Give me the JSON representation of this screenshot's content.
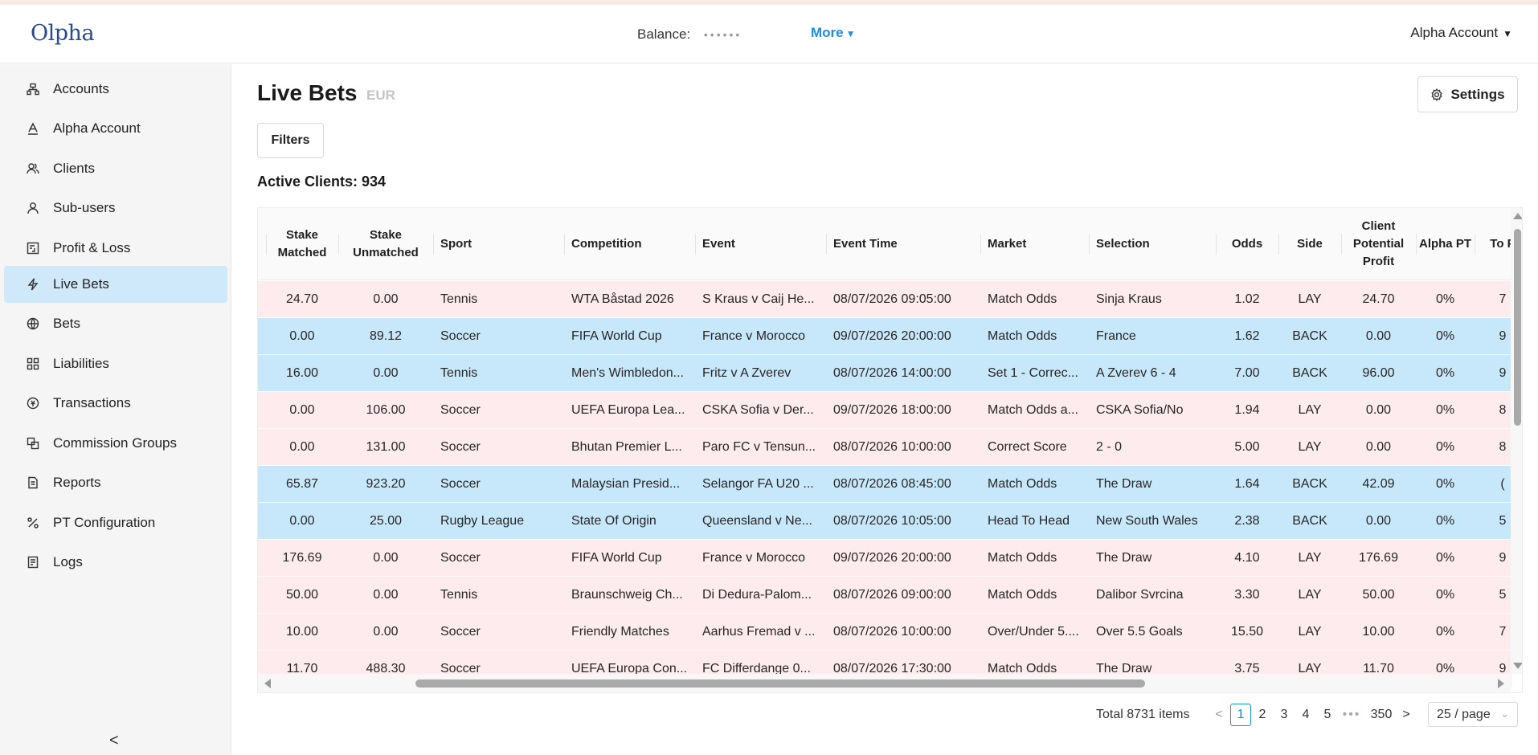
{
  "header": {
    "logo": "Olpha",
    "balance_label": "Balance:",
    "balance_value": "••••••",
    "more_label": "More",
    "account_label": "Alpha Account"
  },
  "sidebar": {
    "items": [
      {
        "label": "Accounts",
        "icon": "accounts-icon"
      },
      {
        "label": "Alpha Account",
        "icon": "alpha-icon"
      },
      {
        "label": "Clients",
        "icon": "clients-icon"
      },
      {
        "label": "Sub-users",
        "icon": "user-icon"
      },
      {
        "label": "Profit & Loss",
        "icon": "ledger-icon"
      },
      {
        "label": "Live Bets",
        "icon": "lightning-icon",
        "active": true
      },
      {
        "label": "Bets",
        "icon": "ball-icon"
      },
      {
        "label": "Liabilities",
        "icon": "grid-icon"
      },
      {
        "label": "Transactions",
        "icon": "currency-icon"
      },
      {
        "label": "Commission Groups",
        "icon": "groups-icon"
      },
      {
        "label": "Reports",
        "icon": "document-icon"
      },
      {
        "label": "PT Configuration",
        "icon": "percent-icon"
      },
      {
        "label": "Logs",
        "icon": "log-icon"
      }
    ],
    "collapse_label": "<"
  },
  "page": {
    "title": "Live Bets",
    "currency": "EUR",
    "settings_label": "Settings",
    "filters_label": "Filters",
    "active_clients": "Active Clients: 934"
  },
  "table": {
    "columns": [
      "Stake Matched",
      "Stake Unmatched",
      "Sport",
      "Competition",
      "Event",
      "Event Time",
      "Market",
      "Selection",
      "Odds",
      "Side",
      "Client Potential Profit",
      "Alpha PT",
      "To P"
    ],
    "rows": [
      {
        "side_type": "lay",
        "cells": [
          "24.70",
          "0.00",
          "Tennis",
          "WTA Båstad 2026",
          "S Kraus v Caij He...",
          "08/07/2026 09:05:00",
          "Match Odds",
          "Sinja Kraus",
          "1.02",
          "LAY",
          "24.70",
          "0%",
          "7"
        ]
      },
      {
        "side_type": "back",
        "cells": [
          "0.00",
          "89.12",
          "Soccer",
          "FIFA World Cup",
          "France v Morocco",
          "09/07/2026 20:00:00",
          "Match Odds",
          "France",
          "1.62",
          "BACK",
          "0.00",
          "0%",
          "9"
        ]
      },
      {
        "side_type": "back",
        "cells": [
          "16.00",
          "0.00",
          "Tennis",
          "Men's Wimbledon...",
          "Fritz v A Zverev",
          "08/07/2026 14:00:00",
          "Set 1 - Correc...",
          "A Zverev 6 - 4",
          "7.00",
          "BACK",
          "96.00",
          "0%",
          "9"
        ]
      },
      {
        "side_type": "lay",
        "cells": [
          "0.00",
          "106.00",
          "Soccer",
          "UEFA Europa Lea...",
          "CSKA Sofia v Der...",
          "09/07/2026 18:00:00",
          "Match Odds a...",
          "CSKA Sofia/No",
          "1.94",
          "LAY",
          "0.00",
          "0%",
          "8"
        ]
      },
      {
        "side_type": "lay",
        "cells": [
          "0.00",
          "131.00",
          "Soccer",
          "Bhutan Premier L...",
          "Paro FC v Tensun...",
          "08/07/2026 10:00:00",
          "Correct Score",
          "2 - 0",
          "5.00",
          "LAY",
          "0.00",
          "0%",
          "8"
        ]
      },
      {
        "side_type": "back",
        "cells": [
          "65.87",
          "923.20",
          "Soccer",
          "Malaysian Presid...",
          "Selangor FA U20 ...",
          "08/07/2026 08:45:00",
          "Match Odds",
          "The Draw",
          "1.64",
          "BACK",
          "42.09",
          "0%",
          "("
        ]
      },
      {
        "side_type": "back",
        "cells": [
          "0.00",
          "25.00",
          "Rugby League",
          "State Of Origin",
          "Queensland v Ne...",
          "08/07/2026 10:05:00",
          "Head To Head",
          "New South Wales",
          "2.38",
          "BACK",
          "0.00",
          "0%",
          "5"
        ]
      },
      {
        "side_type": "lay",
        "cells": [
          "176.69",
          "0.00",
          "Soccer",
          "FIFA World Cup",
          "France v Morocco",
          "09/07/2026 20:00:00",
          "Match Odds",
          "The Draw",
          "4.10",
          "LAY",
          "176.69",
          "0%",
          "9"
        ]
      },
      {
        "side_type": "lay",
        "cells": [
          "50.00",
          "0.00",
          "Tennis",
          "Braunschweig Ch...",
          "Di Dedura-Palom...",
          "08/07/2026 09:00:00",
          "Match Odds",
          "Dalibor Svrcina",
          "3.30",
          "LAY",
          "50.00",
          "0%",
          "5"
        ]
      },
      {
        "side_type": "lay",
        "cells": [
          "10.00",
          "0.00",
          "Soccer",
          "Friendly Matches",
          "Aarhus Fremad v ...",
          "08/07/2026 10:00:00",
          "Over/Under 5....",
          "Over 5.5 Goals",
          "15.50",
          "LAY",
          "10.00",
          "0%",
          "7"
        ]
      },
      {
        "side_type": "lay",
        "cells": [
          "11.70",
          "488.30",
          "Soccer",
          "UEFA Europa Con...",
          "FC Differdange 0...",
          "08/07/2026 17:30:00",
          "Match Odds",
          "The Draw",
          "3.75",
          "LAY",
          "11.70",
          "0%",
          "9"
        ]
      }
    ]
  },
  "pagination": {
    "total": "Total 8731 items",
    "prev": "<",
    "pages": [
      "1",
      "2",
      "3",
      "4",
      "5"
    ],
    "ellipsis": "•••",
    "last": "350",
    "next": ">",
    "page_size": "25 / page",
    "current_page": "1"
  },
  "colors": {
    "back_row": "#c7e8fb",
    "lay_row": "#fdebed",
    "accent": "#1a8fe3",
    "active_nav": "#cfe9fb"
  }
}
